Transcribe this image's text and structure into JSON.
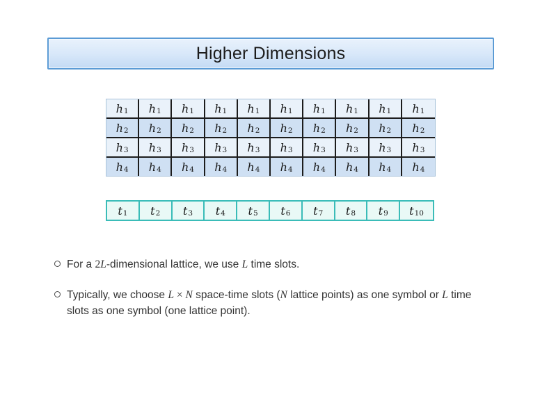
{
  "title_bar": {
    "label": "Higher Dimensions"
  },
  "h_table": {
    "columns": 10,
    "rows": [
      {
        "base": "h",
        "sub": "1"
      },
      {
        "base": "h",
        "sub": "2"
      },
      {
        "base": "h",
        "sub": "3"
      },
      {
        "base": "h",
        "sub": "4"
      }
    ]
  },
  "t_table": {
    "cells": [
      {
        "base": "t",
        "sub": "1"
      },
      {
        "base": "t",
        "sub": "2"
      },
      {
        "base": "t",
        "sub": "3"
      },
      {
        "base": "t",
        "sub": "4"
      },
      {
        "base": "t",
        "sub": "5"
      },
      {
        "base": "t",
        "sub": "6"
      },
      {
        "base": "t",
        "sub": "7"
      },
      {
        "base": "t",
        "sub": "8"
      },
      {
        "base": "t",
        "sub": "9"
      },
      {
        "base": "t",
        "sub": "10"
      }
    ]
  },
  "bullets": [
    {
      "segments": [
        {
          "t": "For a ",
          "s": "n"
        },
        {
          "t": "2",
          "s": "u"
        },
        {
          "t": "L",
          "s": "i"
        },
        {
          "t": "-dimensional lattice, we use ",
          "s": "n"
        },
        {
          "t": "L",
          "s": "i"
        },
        {
          "t": " time slots.",
          "s": "n"
        }
      ]
    },
    {
      "segments": [
        {
          "t": "Typically, we choose ",
          "s": "n"
        },
        {
          "t": "L",
          "s": "i"
        },
        {
          "t": " × ",
          "s": "u"
        },
        {
          "t": "N",
          "s": "i"
        },
        {
          "t": " space-time slots (",
          "s": "n"
        },
        {
          "t": "N",
          "s": "i"
        },
        {
          "t": " lattice points) as one symbol or ",
          "s": "n"
        },
        {
          "t": "L",
          "s": "i"
        },
        {
          "t": " time slots as one symbol (one lattice point).",
          "s": "n"
        }
      ]
    }
  ],
  "colors": {
    "title_border": "#5b9bd5",
    "title_fill_top": "#e9f2fc",
    "title_fill_mid": "#d7e7f9",
    "title_fill_bottom": "#c3daf4",
    "h_row_light": "#eaf2fa",
    "h_row_dark": "#cfe0f3",
    "h_grid_line": "#1c1c1c",
    "h_outer_border": "#a9c3da",
    "t_border": "#3abcb8",
    "t_fill": "#e9f9f6",
    "text": "#2b2b2b"
  }
}
